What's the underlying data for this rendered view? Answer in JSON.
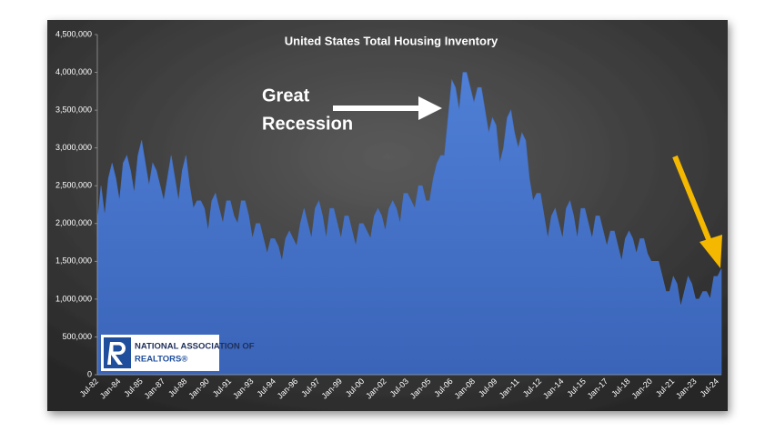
{
  "chart_data": {
    "type": "area",
    "title": "United States Total Housing Inventory",
    "annotation_lines": [
      "Great",
      "Recession"
    ],
    "logo_lines": [
      "NATIONAL ASSOCIATION OF",
      "REALTORS®"
    ],
    "color": "#4472c4",
    "grid": false,
    "ylim": [
      0,
      4500000
    ],
    "yticks": [
      0,
      {
        "value": 500000,
        "label": "500,000"
      },
      {
        "value": 1000000,
        "label": "1,000,000"
      },
      {
        "value": 1500000,
        "label": "1,500,000"
      },
      {
        "value": 2000000,
        "label": "2,000,000"
      },
      {
        "value": 2500000,
        "label": "2,500,000"
      },
      {
        "value": 3000000,
        "label": "3,000,000"
      },
      {
        "value": 3500000,
        "label": "3,500,000"
      },
      {
        "value": 4000000,
        "label": "4,000,000"
      },
      {
        "value": 4500000,
        "label": "4,500,000"
      }
    ],
    "categories": [
      "Jul-82",
      null,
      null,
      null,
      null,
      null,
      "Jan-84",
      null,
      null,
      null,
      null,
      null,
      "Jul-85",
      null,
      null,
      null,
      null,
      null,
      "Jan-87",
      null,
      null,
      null,
      null,
      null,
      "Jul-88",
      null,
      null,
      null,
      null,
      null,
      "Jan-90",
      null,
      null,
      null,
      null,
      null,
      "Jul-91",
      null,
      null,
      null,
      null,
      null,
      "Jan-93",
      null,
      null,
      null,
      null,
      null,
      "Jul-94",
      null,
      null,
      null,
      null,
      null,
      "Jan-96",
      null,
      null,
      null,
      null,
      null,
      "Jul-97",
      null,
      null,
      null,
      null,
      null,
      "Jan-99",
      null,
      null,
      null,
      null,
      null,
      "Jul-00",
      null,
      null,
      null,
      null,
      null,
      "Jan-02",
      null,
      null,
      null,
      null,
      null,
      "Jul-03",
      null,
      null,
      null,
      null,
      null,
      "Jan-05",
      null,
      null,
      null,
      null,
      null,
      "Jul-06",
      null,
      null,
      null,
      null,
      null,
      "Jan-08",
      null,
      null,
      null,
      null,
      null,
      "Jul-09",
      null,
      null,
      null,
      null,
      null,
      "Jan-11",
      null,
      null,
      null,
      null,
      null,
      "Jul-12",
      null,
      null,
      null,
      null,
      null,
      "Jan-14",
      null,
      null,
      null,
      null,
      null,
      "Jul-15",
      null,
      null,
      null,
      null,
      null,
      "Jan-17",
      null,
      null,
      null,
      null,
      null,
      "Jul-18",
      null,
      null,
      null,
      null,
      null,
      "Jan-20",
      null,
      null,
      null,
      null,
      null,
      "Jul-21",
      null,
      null,
      null,
      null,
      null,
      "Jan-23",
      null,
      null,
      null,
      null,
      null,
      "Jul-24",
      null
    ],
    "values": [
      2000000,
      2500000,
      2100000,
      2600000,
      2800000,
      2600000,
      2300000,
      2800000,
      2900000,
      2700000,
      2400000,
      2900000,
      3100000,
      2800000,
      2500000,
      2800000,
      2700000,
      2500000,
      2300000,
      2600000,
      2900000,
      2600000,
      2300000,
      2700000,
      2900000,
      2500000,
      2200000,
      2300000,
      2300000,
      2200000,
      1900000,
      2300000,
      2400000,
      2200000,
      2000000,
      2300000,
      2300000,
      2100000,
      2000000,
      2300000,
      2300000,
      2100000,
      1800000,
      2000000,
      2000000,
      1800000,
      1600000,
      1800000,
      1800000,
      1700000,
      1500000,
      1800000,
      1900000,
      1800000,
      1700000,
      2000000,
      2200000,
      2000000,
      1800000,
      2200000,
      2300000,
      2100000,
      1800000,
      2200000,
      2200000,
      2000000,
      1800000,
      2100000,
      2100000,
      1900000,
      1700000,
      2000000,
      2000000,
      1900000,
      1800000,
      2100000,
      2200000,
      2100000,
      1900000,
      2200000,
      2300000,
      2200000,
      2000000,
      2400000,
      2400000,
      2300000,
      2200000,
      2500000,
      2500000,
      2300000,
      2300000,
      2600000,
      2800000,
      2900000,
      2900000,
      3400000,
      3900000,
      3800000,
      3500000,
      4000000,
      4000000,
      3800000,
      3600000,
      3800000,
      3800000,
      3500000,
      3200000,
      3400000,
      3300000,
      2800000,
      3000000,
      3400000,
      3500000,
      3200000,
      3000000,
      3200000,
      3100000,
      2600000,
      2300000,
      2400000,
      2400000,
      2100000,
      1800000,
      2100000,
      2200000,
      2000000,
      1800000,
      2200000,
      2300000,
      2100000,
      1800000,
      2200000,
      2200000,
      2000000,
      1800000,
      2100000,
      2100000,
      1900000,
      1700000,
      1900000,
      1900000,
      1700000,
      1500000,
      1800000,
      1900000,
      1800000,
      1600000,
      1800000,
      1800000,
      1600000,
      1500000,
      1500000,
      1500000,
      1300000,
      1100000,
      1100000,
      1300000,
      1200000,
      900000,
      1100000,
      1300000,
      1200000,
      1000000,
      1000000,
      1100000,
      1100000,
      1000000,
      1300000,
      1300000,
      1400000
    ]
  }
}
